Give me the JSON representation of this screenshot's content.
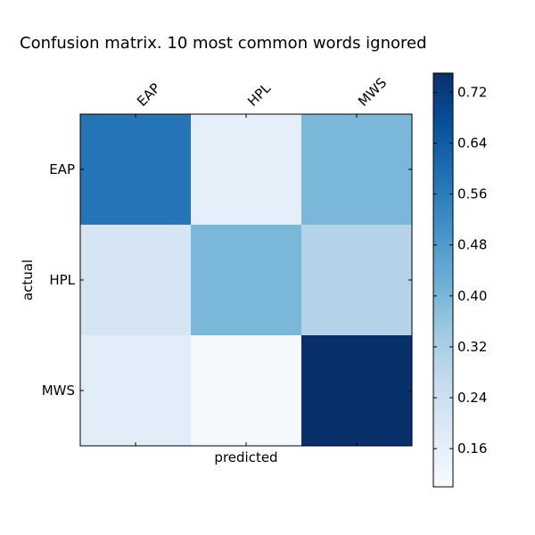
{
  "chart_data": {
    "type": "heatmap",
    "title": "Confusion matrix. 10 most common words ignored",
    "xlabel": "predicted",
    "ylabel": "actual",
    "x_categories": [
      "EAP",
      "HPL",
      "MWS"
    ],
    "y_categories": [
      "EAP",
      "HPL",
      "MWS"
    ],
    "values": [
      [
        0.58,
        0.16,
        0.4
      ],
      [
        0.21,
        0.4,
        0.3
      ],
      [
        0.17,
        0.11,
        0.75
      ]
    ],
    "colorbar": {
      "range": [
        0.1,
        0.75
      ],
      "ticks": [
        0.16,
        0.24,
        0.32,
        0.4,
        0.48,
        0.56,
        0.64,
        0.72
      ],
      "tick_labels": [
        "0.16",
        "0.24",
        "0.32",
        "0.40",
        "0.48",
        "0.56",
        "0.64",
        "0.72"
      ]
    },
    "colormap": "Blues",
    "colormap_stops": [
      "#f7fbff",
      "#deebf7",
      "#c6dbef",
      "#9ecae1",
      "#6baed6",
      "#4292c6",
      "#2171b5",
      "#08519c",
      "#08306b"
    ],
    "grid": false,
    "x_tick_position": "top",
    "colorbar_position": "right"
  }
}
